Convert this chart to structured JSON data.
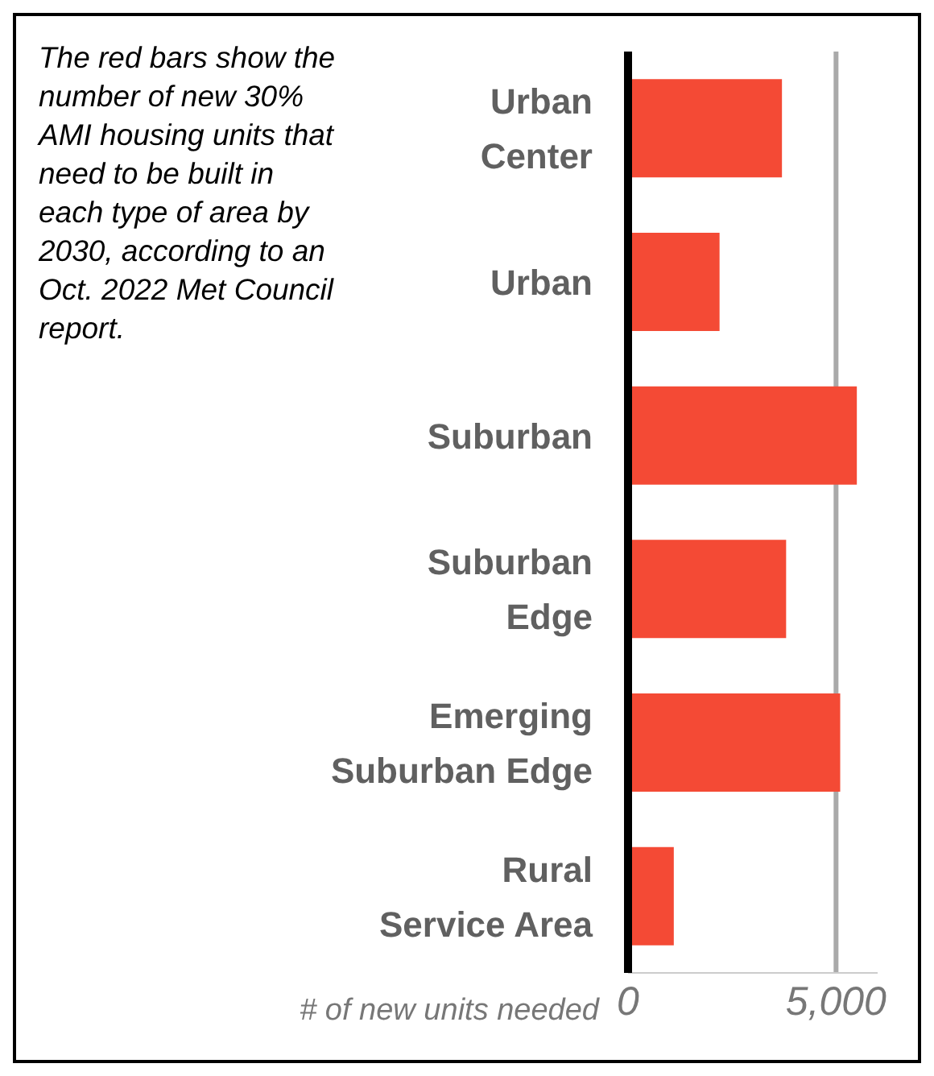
{
  "chart_data": {
    "type": "bar",
    "orientation": "horizontal",
    "categories": [
      "Urban Center",
      "Urban",
      "Suburban",
      "Suburban Edge",
      "Emerging Suburban Edge",
      "Rural Service Area"
    ],
    "values": [
      3700,
      2200,
      5500,
      3800,
      5100,
      1100
    ],
    "color": "#f44a35",
    "xlim": [
      0,
      6000
    ],
    "xticks": [
      0,
      {
        "value": 5000,
        "label": "5,000"
      }
    ],
    "xlabel": "# of new units needed",
    "grid": "x",
    "annotations": [
      "The red bars show the number of new 30% AMI housing units that need to be built in each type of area by 2030, according to an Oct. 2022 Met Council report."
    ]
  }
}
